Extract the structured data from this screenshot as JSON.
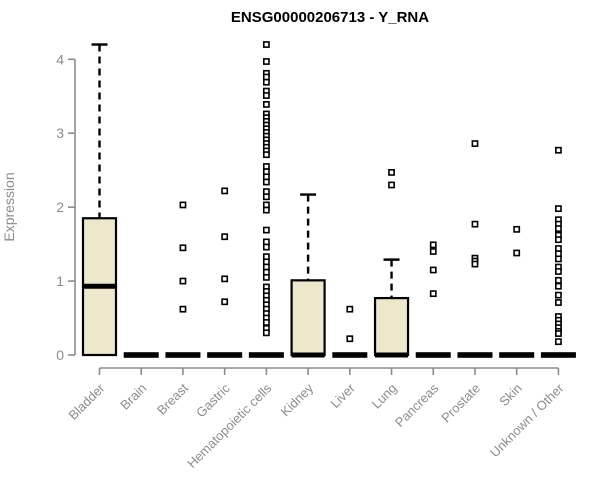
{
  "chart_data": {
    "type": "boxplot",
    "title": "ENSG00000206713 - Y_RNA",
    "ylabel": "Expression",
    "xlabel": "",
    "ylim": [
      0,
      4.3
    ],
    "yticks": [
      0,
      1,
      2,
      3,
      4
    ],
    "grid": false,
    "legend": "none",
    "colors": {
      "box_fill": "#ede7cb",
      "box_stroke": "#000000",
      "axis": "#8c8c8c",
      "title": "#000000"
    },
    "categories": [
      "Bladder",
      "Brain",
      "Breast",
      "Gastric",
      "Hematopoietic cells",
      "Kidney",
      "Liver",
      "Lung",
      "Pancreas",
      "Prostate",
      "Skin",
      "Unknown / Other"
    ],
    "series": [
      {
        "name": "Bladder",
        "q1": 0,
        "median": 0.93,
        "q3": 1.85,
        "whisker_low": 0,
        "whisker_high": 4.2,
        "outliers": []
      },
      {
        "name": "Brain",
        "q1": 0,
        "median": 0,
        "q3": 0,
        "whisker_low": 0,
        "whisker_high": 0,
        "outliers": []
      },
      {
        "name": "Breast",
        "q1": 0,
        "median": 0,
        "q3": 0,
        "whisker_low": 0,
        "whisker_high": 0,
        "outliers": [
          2.03,
          1.45,
          1.0,
          0.62
        ]
      },
      {
        "name": "Gastric",
        "q1": 0,
        "median": 0,
        "q3": 0,
        "whisker_low": 0,
        "whisker_high": 0,
        "outliers": [
          2.22,
          1.6,
          1.03,
          0.72
        ]
      },
      {
        "name": "Hematopoietic cells",
        "q1": 0,
        "median": 0,
        "q3": 0,
        "whisker_low": 0,
        "whisker_high": 0,
        "outliers": [
          4.2,
          3.97,
          3.81,
          3.76,
          3.69,
          3.57,
          3.51,
          3.39,
          3.26,
          3.21,
          3.16,
          3.11,
          3.06,
          3.01,
          2.96,
          2.91,
          2.86,
          2.81,
          2.76,
          2.71,
          2.55,
          2.48,
          2.41,
          2.34,
          2.21,
          2.14,
          2.03,
          1.96,
          1.69,
          1.53,
          1.46,
          1.33,
          1.26,
          1.19,
          1.12,
          1.05,
          0.92,
          0.86,
          0.8,
          0.74,
          0.68,
          0.62,
          0.56,
          0.5,
          0.44,
          0.36,
          0.3
        ]
      },
      {
        "name": "Kidney",
        "q1": 0,
        "median": 0,
        "q3": 1.01,
        "whisker_low": 0,
        "whisker_high": 2.17,
        "outliers": []
      },
      {
        "name": "Liver",
        "q1": 0,
        "median": 0,
        "q3": 0,
        "whisker_low": 0,
        "whisker_high": 0,
        "outliers": [
          0.62,
          0.22
        ]
      },
      {
        "name": "Lung",
        "q1": 0,
        "median": 0,
        "q3": 0.77,
        "whisker_low": 0,
        "whisker_high": 1.29,
        "outliers": [
          2.47,
          2.3
        ]
      },
      {
        "name": "Pancreas",
        "q1": 0,
        "median": 0,
        "q3": 0,
        "whisker_low": 0,
        "whisker_high": 0,
        "outliers": [
          1.49,
          1.4,
          1.15,
          0.83
        ]
      },
      {
        "name": "Prostate",
        "q1": 0,
        "median": 0,
        "q3": 0,
        "whisker_low": 0,
        "whisker_high": 0,
        "outliers": [
          2.86,
          1.77,
          1.31,
          1.27,
          1.23
        ]
      },
      {
        "name": "Skin",
        "q1": 0,
        "median": 0,
        "q3": 0,
        "whisker_low": 0,
        "whisker_high": 0,
        "outliers": [
          1.7,
          1.38
        ]
      },
      {
        "name": "Unknown / Other",
        "q1": 0,
        "median": 0,
        "q3": 0,
        "whisker_low": 0,
        "whisker_high": 0,
        "outliers": [
          2.77,
          1.98,
          1.83,
          1.77,
          1.71,
          1.62,
          1.56,
          1.44,
          1.37,
          1.3,
          1.19,
          1.13,
          1.01,
          0.93,
          0.81,
          0.71,
          0.52,
          0.47,
          0.42,
          0.37,
          0.32,
          0.29,
          0.18
        ]
      }
    ]
  }
}
